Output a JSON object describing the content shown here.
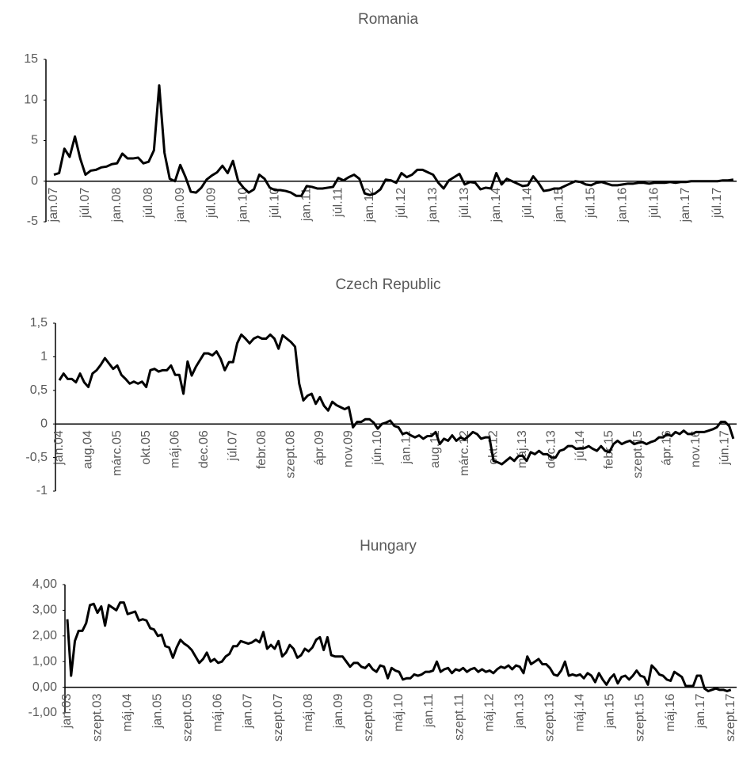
{
  "chart_data": [
    {
      "type": "line",
      "title": "Romania",
      "color": "#000000",
      "ylim": [
        -5,
        15
      ],
      "yticks": [
        15,
        10,
        5,
        0,
        -5
      ],
      "categories": [
        "jan.07",
        null,
        null,
        null,
        null,
        null,
        "júl.07",
        null,
        null,
        null,
        null,
        null,
        "jan.08",
        null,
        null,
        null,
        null,
        null,
        "júl.08",
        null,
        null,
        null,
        null,
        null,
        "jan.09",
        null,
        null,
        null,
        null,
        null,
        "júl.09",
        null,
        null,
        null,
        null,
        null,
        "jan.10",
        null,
        null,
        null,
        null,
        null,
        "júl.10",
        null,
        null,
        null,
        null,
        null,
        "jan.11",
        null,
        null,
        null,
        null,
        null,
        "júl.11",
        null,
        null,
        null,
        null,
        null,
        "jan.12",
        null,
        null,
        null,
        null,
        null,
        "júl.12",
        null,
        null,
        null,
        null,
        null,
        "jan.13",
        null,
        null,
        null,
        null,
        null,
        "júl.13",
        null,
        null,
        null,
        null,
        null,
        "jan.14",
        null,
        null,
        null,
        null,
        null,
        "júl.14",
        null,
        null,
        null,
        null,
        null,
        "jan.15",
        null,
        null,
        null,
        null,
        null,
        "júl.15",
        null,
        null,
        null,
        null,
        null,
        "jan.16",
        null,
        null,
        null,
        null,
        null,
        "júl.16",
        null,
        null,
        null,
        null,
        null,
        "jan.17",
        null,
        null,
        null,
        null,
        null,
        "júl.17",
        null,
        null,
        null
      ],
      "values": [
        0.8,
        1.0,
        4.0,
        3.0,
        5.5,
        2.8,
        0.8,
        1.3,
        1.4,
        1.7,
        1.8,
        2.1,
        2.2,
        3.4,
        2.8,
        2.8,
        2.9,
        2.2,
        2.4,
        3.8,
        11.8,
        3.5,
        0.3,
        0.0,
        2.0,
        0.5,
        -1.3,
        -1.4,
        -0.8,
        0.2,
        0.7,
        1.1,
        1.9,
        1.0,
        2.5,
        0.0,
        -0.8,
        -1.4,
        -1.0,
        0.8,
        0.3,
        -0.8,
        -1.1,
        -1.1,
        -1.2,
        -1.4,
        -1.8,
        -1.8,
        -0.6,
        -0.7,
        -0.9,
        -0.9,
        -0.8,
        -0.7,
        0.4,
        0.1,
        0.5,
        0.8,
        0.3,
        -1.5,
        -1.7,
        -1.5,
        -1.0,
        0.2,
        0.1,
        -0.2,
        1.0,
        0.5,
        0.8,
        1.4,
        1.4,
        1.1,
        0.8,
        -0.2,
        -0.9,
        0.1,
        0.5,
        0.9,
        -0.4,
        -0.1,
        -0.2,
        -1.0,
        -0.8,
        -0.9,
        1.0,
        -0.4,
        0.3,
        0.0,
        -0.3,
        -0.6,
        -0.5,
        0.6,
        -0.2,
        -1.2,
        -1.1,
        -0.9,
        -0.9,
        -0.6,
        -0.3,
        0.0,
        -0.1,
        -0.4,
        -0.5,
        -0.2,
        -0.1,
        -0.3,
        -0.5,
        -0.5,
        -0.4,
        -0.3,
        -0.3,
        -0.2,
        -0.2,
        -0.3,
        -0.2,
        -0.2,
        -0.2,
        -0.1,
        -0.2,
        -0.1,
        -0.1,
        0.0,
        0.0,
        0.0,
        0.0,
        0.0,
        0.0,
        0.1,
        0.1,
        0.2
      ]
    },
    {
      "type": "line",
      "title": "Czech Republic",
      "color": "#000000",
      "ylim": [
        -1,
        1.5
      ],
      "yticks": [
        {
          "value": 1.5,
          "label": "1,5"
        },
        1,
        {
          "value": 0.5,
          "label": "0,5"
        },
        0,
        {
          "value": -0.5,
          "label": "-0,5"
        },
        -1
      ],
      "categories": [
        "jan.04",
        null,
        null,
        null,
        null,
        null,
        null,
        "aug.04",
        null,
        null,
        null,
        null,
        null,
        null,
        "márc.05",
        null,
        null,
        null,
        null,
        null,
        null,
        "okt.05",
        null,
        null,
        null,
        null,
        null,
        null,
        "máj.06",
        null,
        null,
        null,
        null,
        null,
        null,
        "dec.06",
        null,
        null,
        null,
        null,
        null,
        null,
        "júl.07",
        null,
        null,
        null,
        null,
        null,
        null,
        "febr.08",
        null,
        null,
        null,
        null,
        null,
        null,
        "szept.08",
        null,
        null,
        null,
        null,
        null,
        null,
        "ápr.09",
        null,
        null,
        null,
        null,
        null,
        null,
        "nov.09",
        null,
        null,
        null,
        null,
        null,
        null,
        "jún.10",
        null,
        null,
        null,
        null,
        null,
        null,
        "jan.11",
        null,
        null,
        null,
        null,
        null,
        null,
        "aug.11",
        null,
        null,
        null,
        null,
        null,
        null,
        "márc.12",
        null,
        null,
        null,
        null,
        null,
        null,
        "okt.12",
        null,
        null,
        null,
        null,
        null,
        null,
        "máj.13",
        null,
        null,
        null,
        null,
        null,
        null,
        "dec.13",
        null,
        null,
        null,
        null,
        null,
        null,
        "júl.14",
        null,
        null,
        null,
        null,
        null,
        null,
        "febr.15",
        null,
        null,
        null,
        null,
        null,
        null,
        "szept.15",
        null,
        null,
        null,
        null,
        null,
        null,
        "ápr.16",
        null,
        null,
        null,
        null,
        null,
        null,
        "nov.16",
        null,
        null,
        null,
        null,
        null,
        null,
        "jún.17",
        null,
        null
      ],
      "values": [
        0.65,
        0.75,
        0.67,
        0.67,
        0.62,
        0.75,
        0.62,
        0.55,
        0.75,
        0.8,
        0.88,
        0.98,
        0.9,
        0.82,
        0.87,
        0.73,
        0.67,
        0.6,
        0.63,
        0.6,
        0.63,
        0.55,
        0.8,
        0.82,
        0.78,
        0.8,
        0.8,
        0.87,
        0.73,
        0.73,
        0.45,
        0.93,
        0.72,
        0.85,
        0.95,
        1.05,
        1.05,
        1.02,
        1.08,
        0.97,
        0.8,
        0.92,
        0.92,
        1.2,
        1.33,
        1.27,
        1.2,
        1.27,
        1.3,
        1.27,
        1.27,
        1.33,
        1.27,
        1.12,
        1.32,
        1.27,
        1.22,
        1.15,
        0.6,
        0.35,
        0.42,
        0.45,
        0.3,
        0.4,
        0.27,
        0.2,
        0.33,
        0.28,
        0.25,
        0.22,
        0.25,
        -0.05,
        0.03,
        0.03,
        0.07,
        0.07,
        0.02,
        -0.07,
        0.0,
        0.02,
        0.05,
        -0.03,
        -0.05,
        -0.15,
        -0.13,
        -0.17,
        -0.2,
        -0.17,
        -0.22,
        -0.18,
        -0.18,
        -0.12,
        -0.3,
        -0.22,
        -0.25,
        -0.17,
        -0.25,
        -0.2,
        -0.23,
        -0.18,
        -0.12,
        -0.15,
        -0.22,
        -0.2,
        -0.2,
        -0.55,
        -0.57,
        -0.6,
        -0.55,
        -0.5,
        -0.55,
        -0.48,
        -0.47,
        -0.55,
        -0.42,
        -0.45,
        -0.4,
        -0.45,
        -0.45,
        -0.5,
        -0.5,
        -0.4,
        -0.38,
        -0.33,
        -0.33,
        -0.37,
        -0.36,
        -0.36,
        -0.33,
        -0.37,
        -0.4,
        -0.33,
        -0.4,
        -0.42,
        -0.3,
        -0.25,
        -0.3,
        -0.27,
        -0.25,
        -0.3,
        -0.28,
        -0.27,
        -0.3,
        -0.27,
        -0.25,
        -0.2,
        -0.2,
        -0.15,
        -0.18,
        -0.12,
        -0.15,
        -0.1,
        -0.15,
        -0.15,
        -0.12,
        -0.12,
        -0.12,
        -0.1,
        -0.08,
        -0.05,
        0.03,
        0.03,
        -0.03,
        -0.22
      ]
    },
    {
      "type": "line",
      "title": "Hungary",
      "color": "#000000",
      "ylim": [
        -1,
        4
      ],
      "yticks": [
        {
          "value": 4,
          "label": "4,00"
        },
        {
          "value": 3,
          "label": "3,00"
        },
        {
          "value": 2,
          "label": "2,00"
        },
        {
          "value": 1,
          "label": "1,00"
        },
        {
          "value": 0,
          "label": "0,00"
        },
        {
          "value": -1,
          "label": "-1,00"
        }
      ],
      "categories": [
        "jan.03",
        null,
        null,
        null,
        null,
        null,
        null,
        null,
        "szept.03",
        null,
        null,
        null,
        null,
        null,
        null,
        null,
        "máj.04",
        null,
        null,
        null,
        null,
        null,
        null,
        null,
        "jan.05",
        null,
        null,
        null,
        null,
        null,
        null,
        null,
        "szept.05",
        null,
        null,
        null,
        null,
        null,
        null,
        null,
        "máj.06",
        null,
        null,
        null,
        null,
        null,
        null,
        null,
        "jan.07",
        null,
        null,
        null,
        null,
        null,
        null,
        null,
        "szept.07",
        null,
        null,
        null,
        null,
        null,
        null,
        null,
        "máj.08",
        null,
        null,
        null,
        null,
        null,
        null,
        null,
        "jan.09",
        null,
        null,
        null,
        null,
        null,
        null,
        null,
        "szept.09",
        null,
        null,
        null,
        null,
        null,
        null,
        null,
        "máj.10",
        null,
        null,
        null,
        null,
        null,
        null,
        null,
        "jan.11",
        null,
        null,
        null,
        null,
        null,
        null,
        null,
        "szept.11",
        null,
        null,
        null,
        null,
        null,
        null,
        null,
        "máj.12",
        null,
        null,
        null,
        null,
        null,
        null,
        null,
        "jan.13",
        null,
        null,
        null,
        null,
        null,
        null,
        null,
        "szept.13",
        null,
        null,
        null,
        null,
        null,
        null,
        null,
        "máj.14",
        null,
        null,
        null,
        null,
        null,
        null,
        null,
        "jan.15",
        null,
        null,
        null,
        null,
        null,
        null,
        null,
        "szept.15",
        null,
        null,
        null,
        null,
        null,
        null,
        null,
        "máj.16",
        null,
        null,
        null,
        null,
        null,
        null,
        null,
        "jan.17",
        null,
        null,
        null,
        null,
        null,
        null,
        null,
        "szept.17"
      ],
      "values": [
        2.65,
        0.45,
        1.8,
        2.2,
        2.2,
        2.5,
        3.2,
        3.25,
        2.9,
        3.15,
        2.4,
        3.2,
        3.1,
        3.0,
        3.3,
        3.3,
        2.85,
        2.9,
        2.95,
        2.6,
        2.65,
        2.6,
        2.3,
        2.25,
        2.0,
        2.05,
        1.6,
        1.55,
        1.15,
        1.55,
        1.85,
        1.7,
        1.6,
        1.45,
        1.2,
        0.95,
        1.1,
        1.35,
        1.0,
        1.1,
        0.95,
        1.0,
        1.2,
        1.3,
        1.6,
        1.6,
        1.8,
        1.75,
        1.7,
        1.75,
        1.85,
        1.75,
        2.15,
        1.5,
        1.65,
        1.5,
        1.8,
        1.2,
        1.35,
        1.65,
        1.5,
        1.15,
        1.25,
        1.5,
        1.4,
        1.55,
        1.85,
        1.95,
        1.45,
        1.95,
        1.25,
        1.2,
        1.2,
        1.2,
        1.0,
        0.8,
        0.95,
        0.95,
        0.8,
        0.75,
        0.9,
        0.7,
        0.6,
        0.85,
        0.8,
        0.35,
        0.75,
        0.65,
        0.6,
        0.3,
        0.35,
        0.35,
        0.5,
        0.45,
        0.5,
        0.6,
        0.6,
        0.65,
        1.0,
        0.6,
        0.7,
        0.75,
        0.55,
        0.7,
        0.65,
        0.75,
        0.6,
        0.7,
        0.75,
        0.6,
        0.7,
        0.6,
        0.65,
        0.55,
        0.7,
        0.8,
        0.75,
        0.85,
        0.7,
        0.85,
        0.8,
        0.55,
        1.2,
        0.9,
        1.0,
        1.1,
        0.9,
        0.9,
        0.75,
        0.5,
        0.45,
        0.65,
        1.0,
        0.45,
        0.5,
        0.45,
        0.5,
        0.35,
        0.55,
        0.45,
        0.2,
        0.55,
        0.3,
        0.1,
        0.35,
        0.5,
        0.15,
        0.4,
        0.45,
        0.3,
        0.45,
        0.65,
        0.45,
        0.4,
        0.1,
        0.85,
        0.7,
        0.5,
        0.45,
        0.3,
        0.25,
        0.6,
        0.5,
        0.4,
        0.05,
        0.05,
        0.05,
        0.45,
        0.45,
        -0.05,
        -0.15,
        -0.1,
        -0.05,
        -0.1,
        -0.1,
        -0.15,
        -0.1
      ]
    }
  ]
}
